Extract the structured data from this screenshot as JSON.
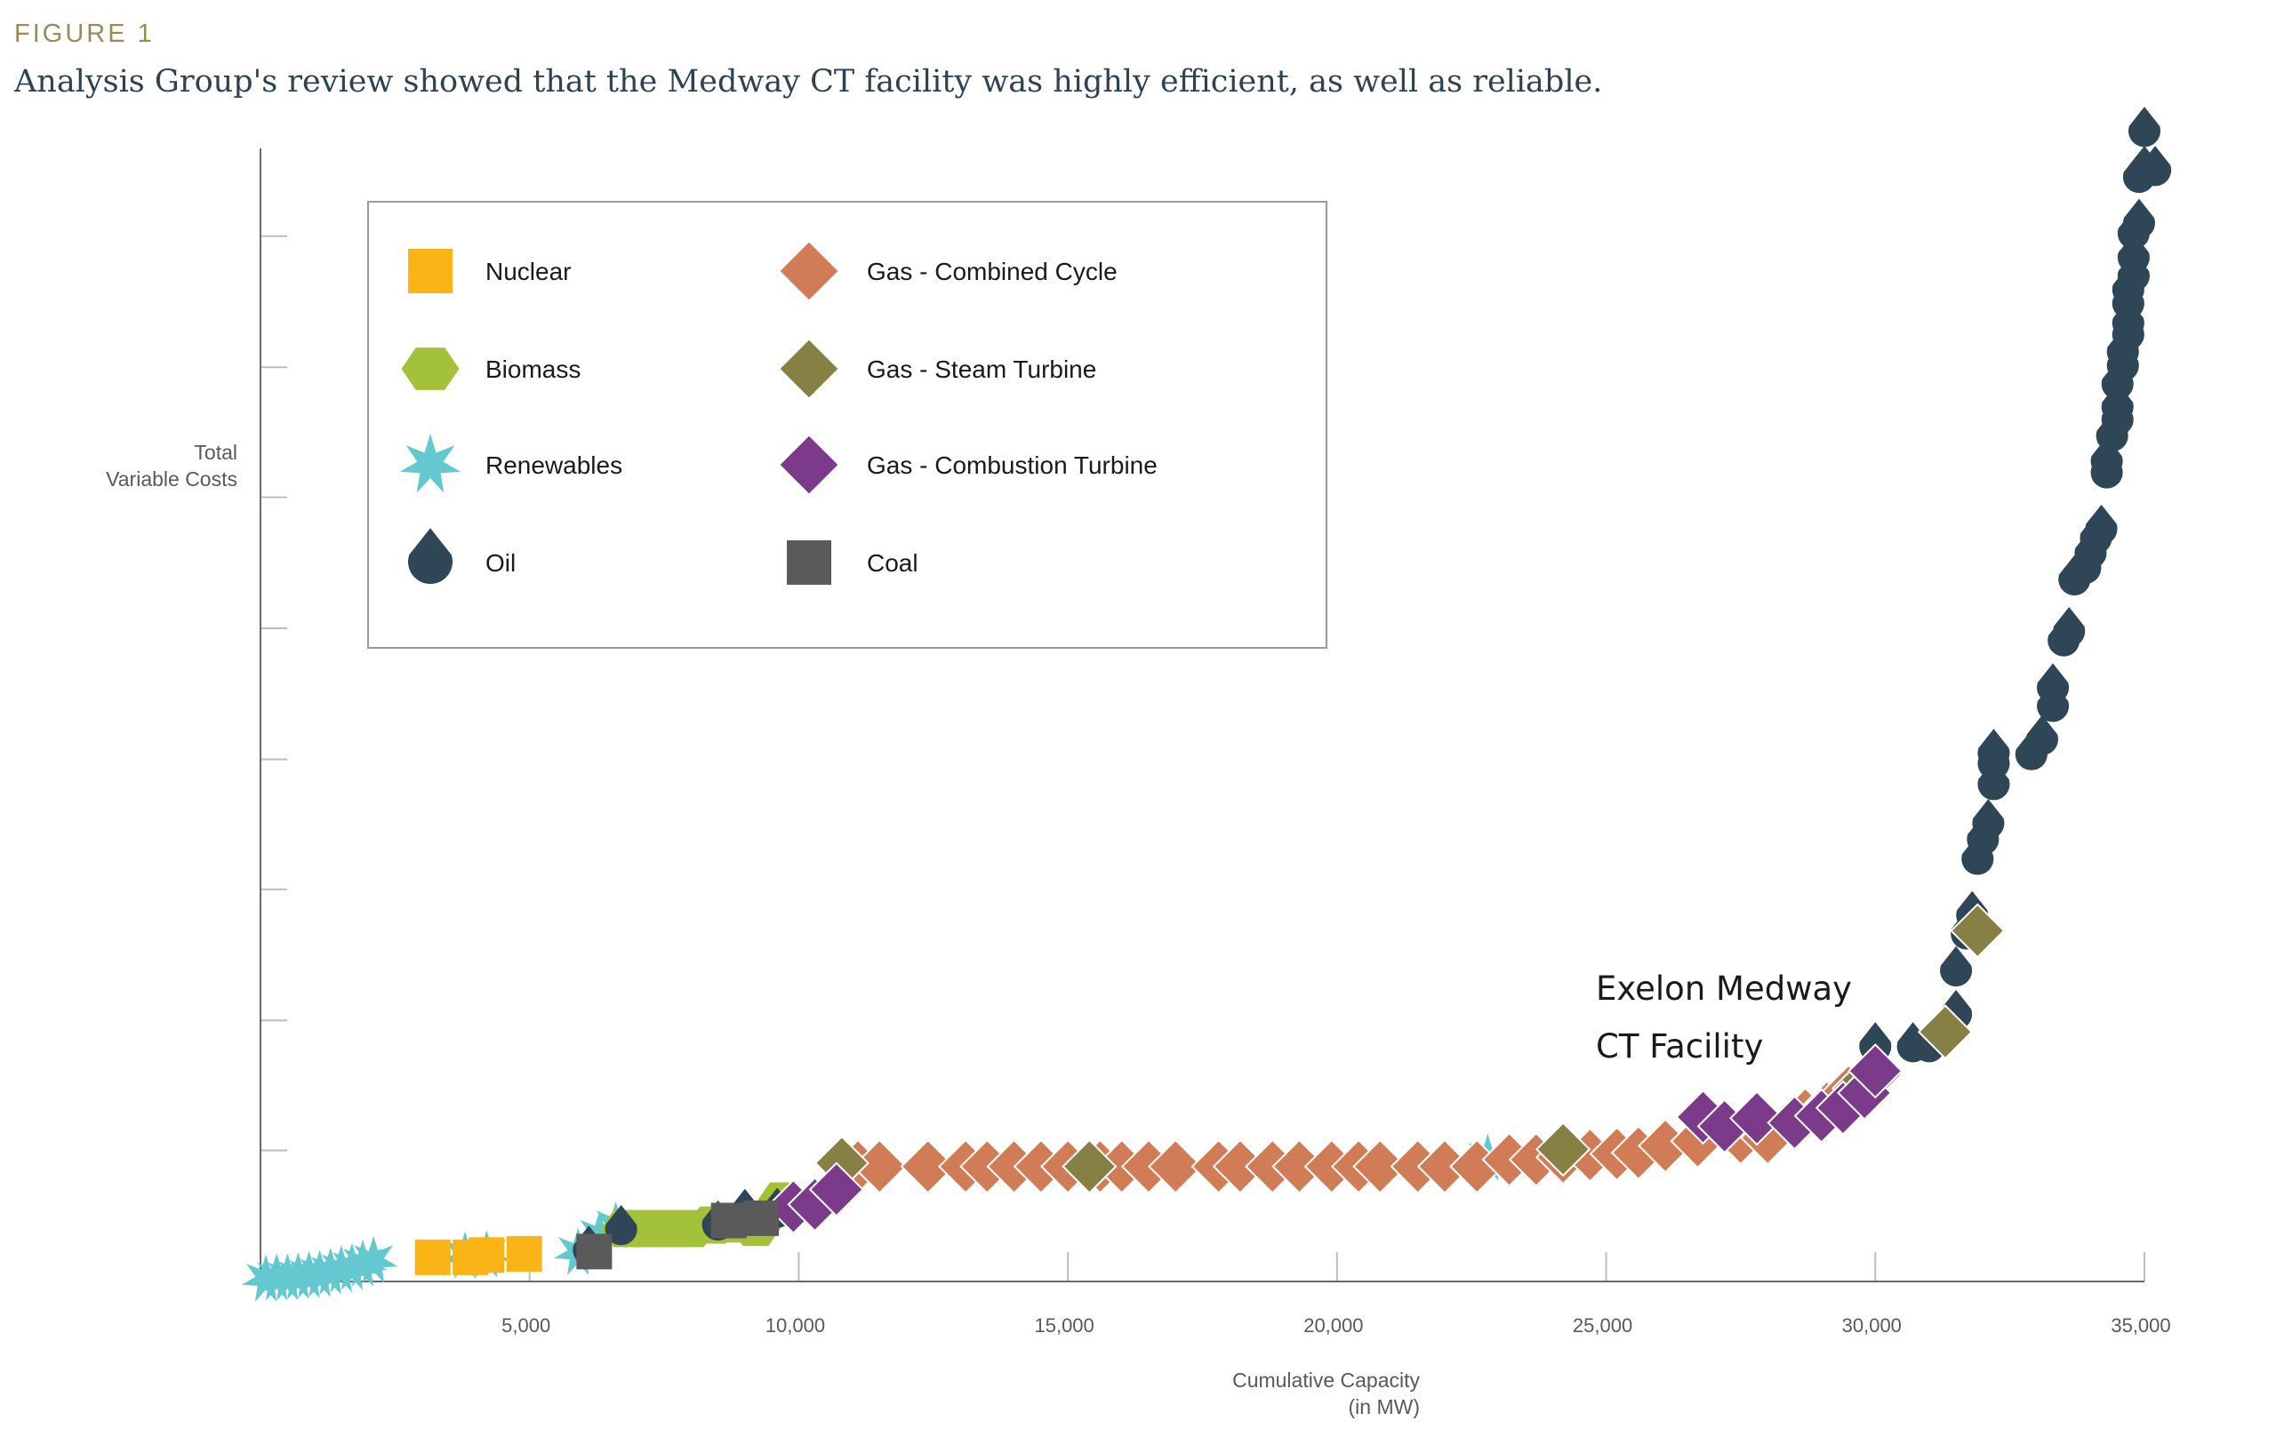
{
  "figure_label": "FIGURE 1",
  "figure_title": "Analysis Group's review showed that the Medway CT facility was highly efficient, as well as reliable.",
  "colors": {
    "nuclear": "#fbb416",
    "biomass": "#a4c13a",
    "renewables": "#63c8cf",
    "oil": "#2e4656",
    "gas_cc": "#d07c56",
    "gas_st": "#878044",
    "gas_ct": "#7b3a8a",
    "coal": "#5a5a5a"
  },
  "chart_data": {
    "type": "scatter",
    "title": "",
    "xlabel_line1": "Cumulative Capacity",
    "xlabel_line2": "(in MW)",
    "ylabel_line1": "Total",
    "ylabel_line2": "Variable Costs",
    "xlim": [
      0,
      35000
    ],
    "ylim": [
      0,
      100
    ],
    "x_ticks": [
      {
        "value": 5000,
        "label": "5,000"
      },
      {
        "value": 10000,
        "label": "10,000"
      },
      {
        "value": 15000,
        "label": "15,000"
      },
      {
        "value": 20000,
        "label": "20,000"
      },
      {
        "value": 25000,
        "label": "25,000"
      },
      {
        "value": 30000,
        "label": "30,000"
      },
      {
        "value": 35000,
        "label": "35,000"
      }
    ],
    "y_ticks": [
      11.4,
      22.7,
      34.1,
      45.4,
      56.8,
      68.2,
      79.5,
      90.9
    ],
    "legend": [
      {
        "key": "nuclear",
        "label": "Nuclear",
        "shape": "square"
      },
      {
        "key": "biomass",
        "label": "Biomass",
        "shape": "hexagon"
      },
      {
        "key": "renewables",
        "label": "Renewables",
        "shape": "star"
      },
      {
        "key": "oil",
        "label": "Oil",
        "shape": "drop"
      },
      {
        "key": "gas_cc",
        "label": "Gas - Combined Cycle",
        "shape": "diamond"
      },
      {
        "key": "gas_st",
        "label": "Gas - Steam Turbine",
        "shape": "diamond"
      },
      {
        "key": "gas_ct",
        "label": "Gas - Combustion Turbine",
        "shape": "diamond"
      },
      {
        "key": "coal",
        "label": "Coal",
        "shape": "square"
      }
    ],
    "annotation": {
      "line1": "Exelon Medway",
      "line2": "CT Facility",
      "x": 26800,
      "y": 14.3
    },
    "series": [
      {
        "key": "renewables",
        "shape": "star",
        "points": [
          [
            100,
            0.2
          ],
          [
            300,
            0.3
          ],
          [
            500,
            0.3
          ],
          [
            700,
            0.4
          ],
          [
            900,
            0.5
          ],
          [
            1100,
            0.6
          ],
          [
            1300,
            0.8
          ],
          [
            1500,
            1.0
          ],
          [
            1700,
            1.2
          ],
          [
            1900,
            1.5
          ],
          [
            2100,
            1.8
          ],
          [
            3800,
            2.2
          ],
          [
            4200,
            2.3
          ],
          [
            5900,
            2.5
          ],
          [
            6300,
            4.0
          ],
          [
            6600,
            4.8
          ],
          [
            22800,
            10.7
          ]
        ]
      },
      {
        "key": "nuclear",
        "shape": "square",
        "points": [
          [
            3200,
            2.1
          ],
          [
            3900,
            2.1
          ],
          [
            4200,
            2.3
          ],
          [
            4900,
            2.4
          ]
        ]
      },
      {
        "key": "biomass",
        "shape": "hexagon",
        "points": [
          [
            6800,
            4.6
          ],
          [
            7100,
            4.6
          ],
          [
            7400,
            4.6
          ],
          [
            7700,
            4.6
          ],
          [
            8000,
            4.6
          ],
          [
            8400,
            4.9
          ],
          [
            8800,
            5.0
          ],
          [
            9200,
            4.7
          ],
          [
            9700,
            7.0
          ]
        ]
      },
      {
        "key": "oil",
        "shape": "drop",
        "points": [
          [
            6100,
            2.7
          ],
          [
            6700,
            4.5
          ],
          [
            8500,
            4.9
          ],
          [
            9000,
            5.9
          ],
          [
            9600,
            6.0
          ],
          [
            10700,
            8.2
          ],
          [
            30000,
            20.4
          ],
          [
            30700,
            20.4
          ],
          [
            31000,
            20.4
          ],
          [
            31500,
            23.2
          ],
          [
            31500,
            27.0
          ],
          [
            31700,
            30.2
          ],
          [
            31800,
            31.8
          ],
          [
            31900,
            36.7
          ],
          [
            32000,
            38.4
          ],
          [
            32100,
            39.8
          ],
          [
            32200,
            43.2
          ],
          [
            32200,
            45.0
          ],
          [
            32200,
            45.9
          ],
          [
            32900,
            45.8
          ],
          [
            33100,
            47.1
          ],
          [
            33300,
            50.0
          ],
          [
            33300,
            51.6
          ],
          [
            33500,
            55.7
          ],
          [
            33600,
            56.5
          ],
          [
            33700,
            61.0
          ],
          [
            33900,
            62.0
          ],
          [
            34000,
            63.3
          ],
          [
            34100,
            64.6
          ],
          [
            34200,
            65.4
          ],
          [
            34300,
            70.3
          ],
          [
            34300,
            71.3
          ],
          [
            34400,
            73.5
          ],
          [
            34500,
            74.9
          ],
          [
            34500,
            76.0
          ],
          [
            34500,
            78.0
          ],
          [
            34600,
            79.6
          ],
          [
            34600,
            80.8
          ],
          [
            34700,
            82.3
          ],
          [
            34700,
            83.3
          ],
          [
            34700,
            85.0
          ],
          [
            34700,
            86.2
          ],
          [
            34800,
            87.4
          ],
          [
            34800,
            89.0
          ],
          [
            34800,
            91.1
          ],
          [
            34900,
            92.0
          ],
          [
            34900,
            96.0
          ],
          [
            35000,
            96.6
          ],
          [
            35200,
            96.6
          ],
          [
            35000,
            100.0
          ]
        ]
      },
      {
        "key": "gas_cc",
        "shape": "diamond",
        "points": [
          [
            11100,
            10.0
          ],
          [
            11500,
            10.0
          ],
          [
            12400,
            10.0
          ],
          [
            13100,
            10.0
          ],
          [
            13500,
            10.0
          ],
          [
            14000,
            10.0
          ],
          [
            14500,
            10.0
          ],
          [
            15000,
            10.0
          ],
          [
            15600,
            10.0
          ],
          [
            16000,
            10.0
          ],
          [
            16500,
            10.0
          ],
          [
            17000,
            10.0
          ],
          [
            17800,
            10.0
          ],
          [
            18200,
            10.0
          ],
          [
            18800,
            10.0
          ],
          [
            19300,
            10.0
          ],
          [
            19900,
            10.0
          ],
          [
            20400,
            10.0
          ],
          [
            20800,
            10.0
          ],
          [
            21500,
            10.0
          ],
          [
            22000,
            10.0
          ],
          [
            22600,
            10.0
          ],
          [
            23200,
            10.6
          ],
          [
            23700,
            10.6
          ],
          [
            24200,
            10.8
          ],
          [
            24700,
            11.0
          ],
          [
            25200,
            11.1
          ],
          [
            25600,
            11.2
          ],
          [
            26100,
            11.8
          ],
          [
            26700,
            12.2
          ],
          [
            27500,
            12.5
          ],
          [
            28000,
            12.5
          ],
          [
            28700,
            14.5
          ],
          [
            29100,
            15.1
          ],
          [
            29500,
            16.5
          ],
          [
            30000,
            18.0
          ]
        ]
      },
      {
        "key": "gas_st",
        "shape": "diamond",
        "points": [
          [
            10800,
            10.3
          ],
          [
            15400,
            10.0
          ],
          [
            24200,
            11.5
          ],
          [
            29700,
            16.8
          ],
          [
            31300,
            21.7
          ],
          [
            31900,
            30.5
          ]
        ]
      },
      {
        "key": "gas_ct",
        "shape": "diamond",
        "points": [
          [
            9900,
            6.5
          ],
          [
            10300,
            6.7
          ],
          [
            10700,
            8.0
          ],
          [
            26800,
            14.3
          ],
          [
            27200,
            13.5
          ],
          [
            27800,
            14.2
          ],
          [
            28500,
            13.8
          ],
          [
            29000,
            14.4
          ],
          [
            29400,
            15.1
          ],
          [
            29800,
            16.4
          ],
          [
            30000,
            18.3
          ]
        ]
      },
      {
        "key": "coal",
        "shape": "square",
        "points": [
          [
            6200,
            2.6
          ],
          [
            8700,
            5.3
          ],
          [
            9300,
            5.5
          ]
        ]
      }
    ]
  }
}
